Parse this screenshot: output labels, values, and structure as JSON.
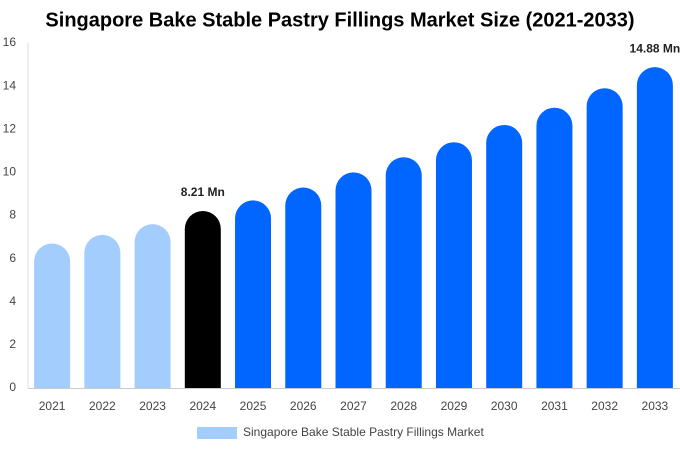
{
  "chart_data": {
    "type": "bar",
    "title": "Singapore Bake Stable Pastry Fillings Market Size (2021-2033)",
    "categories": [
      "2021",
      "2022",
      "2023",
      "2024",
      "2025",
      "2026",
      "2027",
      "2028",
      "2029",
      "2030",
      "2031",
      "2032",
      "2033"
    ],
    "series": [
      {
        "name": "Singapore Bake Stable Pastry Fillings Market",
        "color": "#a3cdfd",
        "bar_colors": [
          "#a3cdfd",
          "#a3cdfd",
          "#a3cdfd",
          "#000000",
          "#0066ff",
          "#0066ff",
          "#0066ff",
          "#0066ff",
          "#0066ff",
          "#0066ff",
          "#0066ff",
          "#0066ff",
          "#0066ff"
        ],
        "values": [
          6.7,
          7.1,
          7.6,
          8.21,
          8.7,
          9.3,
          10.0,
          10.7,
          11.4,
          12.2,
          13.0,
          13.9,
          14.88
        ],
        "value_labels": [
          null,
          null,
          null,
          "8.21 Mn",
          null,
          null,
          null,
          null,
          null,
          null,
          null,
          null,
          "14.88 Mn"
        ]
      }
    ],
    "ylim": [
      0,
      16
    ],
    "yticks": [
      0,
      2,
      4,
      6,
      8,
      10,
      12,
      14,
      16
    ],
    "grid": false
  }
}
